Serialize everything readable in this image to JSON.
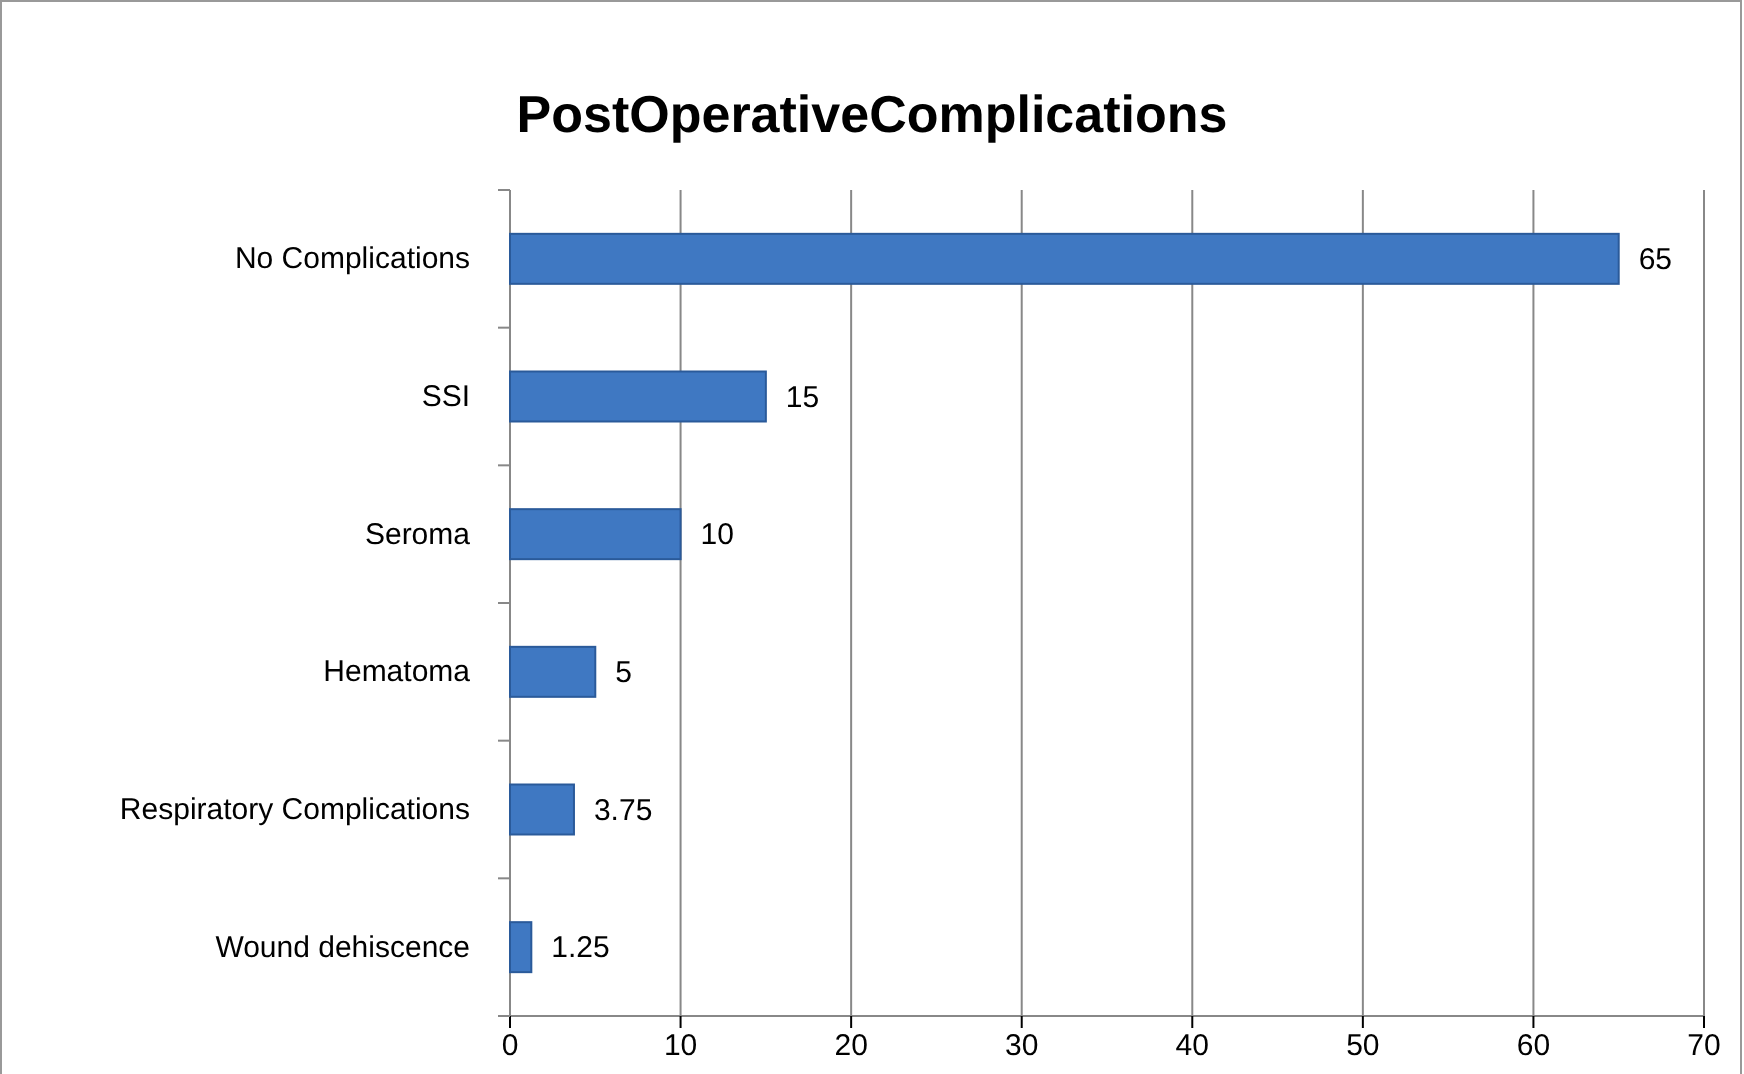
{
  "chart_data": {
    "type": "bar",
    "orientation": "horizontal",
    "title": "PostOperativeComplications",
    "categories": [
      "No Complications",
      "SSI",
      "Seroma",
      "Hematoma",
      "Respiratory Complications",
      "Wound dehiscence"
    ],
    "values": [
      65,
      15,
      10,
      5,
      3.75,
      1.25
    ],
    "color": "#3f78c2",
    "xlim": [
      0,
      70
    ],
    "xticks": [
      0,
      10,
      20,
      30,
      40,
      50,
      60,
      70
    ],
    "grid": "x",
    "data_labels": true
  }
}
